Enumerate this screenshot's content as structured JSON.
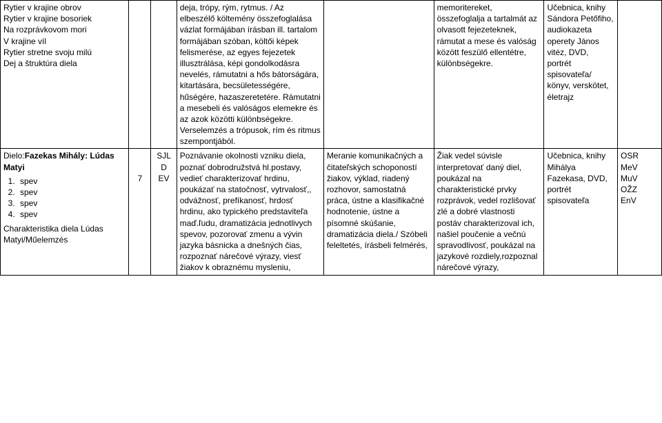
{
  "row1": {
    "col1": "Rytier v krajine obrov\nRytier v krajine bosoriek\nNa rozprávkovom mori\nV krajine víl\nRytier stretne svoju milú\nDej a štruktúra diela",
    "col2": "",
    "col3": "",
    "col4": "deja, trópy, rým, rytmus. / Az elbeszélő költemény összefoglalása vázlat formájában írásban ill. tartalom formájában szóban, költői képek felismerése, az egyes fejezetek illusztrálása, képi gondolkodásra nevelés, rámutatni a hős bátorságára, kitartására, becsületességére, hűségére, hazaszeretetére. Rámutatni a mesebeli és valóságos elemekre és az azok közötti különbségekre. Verselemzés a trópusok, rím és ritmus szempontjából.",
    "col5": "",
    "col6": "memoritereket, összefoglalja a tartalmát az olvasott fejezeteknek, rámutat a mese és valóság között feszülő ellentétre, különbségekre.",
    "col7": "Učebnica, knihy Sándora Petőfiho, audiokazeta operety János vitéz, DVD, portrét spisovateľa/ könyv, verskötet, életrajz",
    "col8": ""
  },
  "row2": {
    "col1_title_prefix": "Dielo:",
    "col1_title_bold": "Fazekas Mihály: Lúdas Matyi",
    "col1_items": [
      "spev",
      "spev",
      "spev",
      "spev"
    ],
    "col1_tail": "Charakteristika diela Lúdas Matyi/Műelemzés",
    "col2": "7",
    "col3": "SJL\nD\nEV",
    "col4": "Poznávanie  okolnosti vzniku diela, poznať dobrodružstvá hl.postavy, vedieť charakterizovať hrdinu, poukázať na statočnosť, vytrvalosť,, odvážnosť, prefíkanosť, hrdosť hrdinu, ako typického predstaviteľa maď.ľudu, dramatizácia jednotlivych spevov, pozorovať zmenu a vývin jazyka básnicka a dnešných čias, rozpoznať nárečové výrazy, viesť žiakov k obraznému mysleniu,",
    "col5": "Meranie komunikačných a čitateľských schopoností žiakov, výklad, riadený rozhovor, samostatná práca, ústne a klasifikačné hodnotenie, ústne a písomné skúšanie, dramatizácia diela./ Szóbeli feleltetés, írásbeli felmérés,",
    "col6": "Žiak vedel súvisle interpretovať daný diel, poukázal na charakteristické prvky rozprávok, vedel rozlišovať zlé a dobré vlastnosti postáv charakterizoval ich, našiel poučenie a večnú spravodlivosť, poukázal na jazykové rozdiely,rozpoznal nárečové výrazy,",
    "col7": "Učebnica, knihy Mihálya Fazekasa, DVD, portrét spisovateľa",
    "col8": "OSR\nMeV\nMuV\nOŽZ\nEnV"
  }
}
